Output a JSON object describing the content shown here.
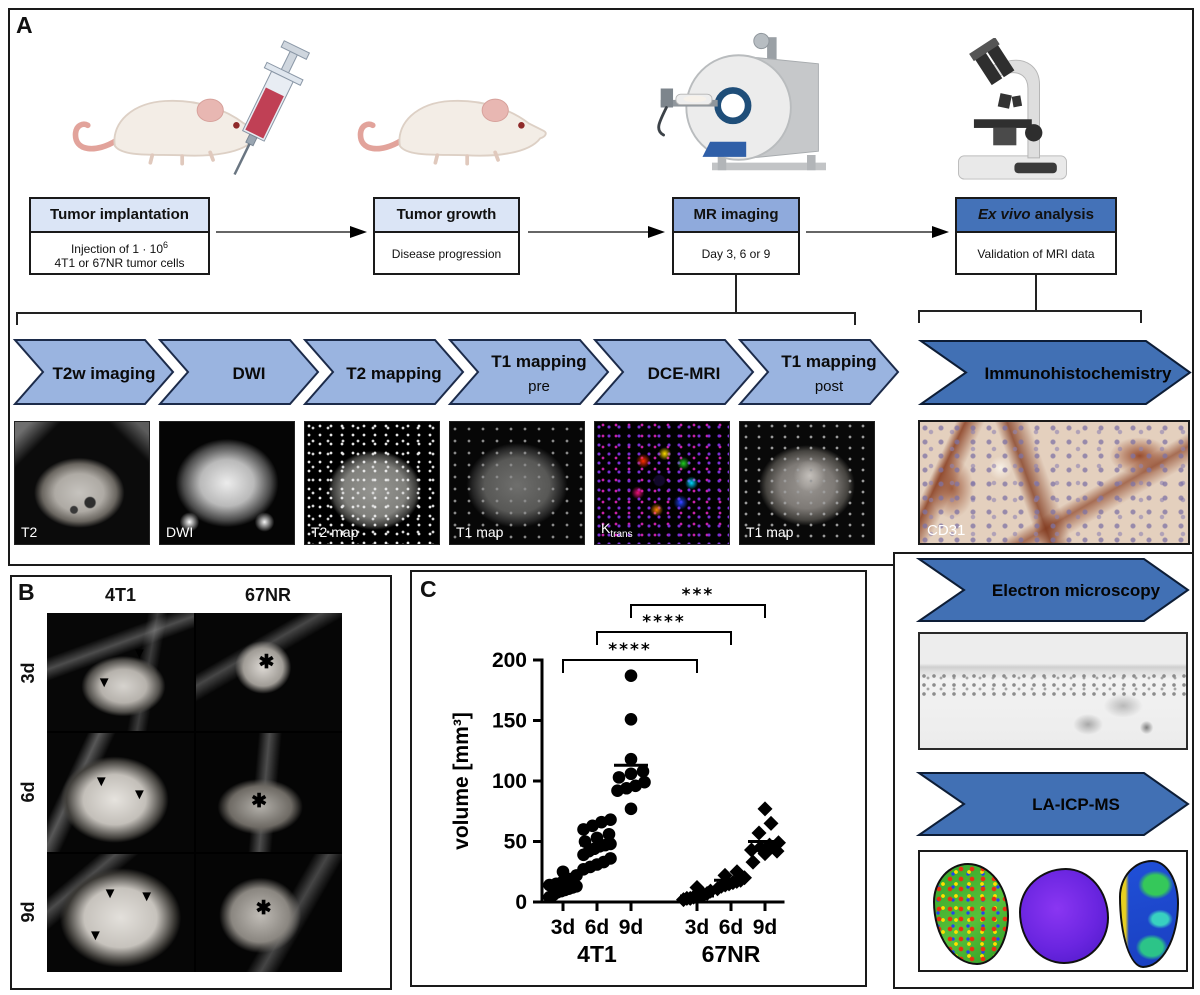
{
  "colors": {
    "chevron_light": "#9ab4e0",
    "chevron_dark": "#4170b4",
    "box_header_light": "#dbe5f6",
    "box_header_medium": "#8faadc",
    "box_header_dark": "#4472b8",
    "border": "#1a1a1a"
  },
  "figure": {
    "panel_a_label": "A",
    "panel_b_label": "B",
    "panel_c_label": "C"
  },
  "panel_a": {
    "flow": {
      "boxes": [
        {
          "title": "Tumor implantation",
          "body1": "Injection of 1 · 10",
          "body1_sup": "6",
          "body2": "4T1 or 67NR tumor cells"
        },
        {
          "title": "Tumor growth",
          "body1": "Disease progression"
        },
        {
          "title": "MR imaging",
          "body1": "Day 3, 6 or 9"
        },
        {
          "title_italic": "Ex vivo",
          "title_rest": " analysis",
          "body1": "Validation of MRI data"
        }
      ]
    },
    "chevrons": [
      {
        "line1": "T2w imaging",
        "line2": ""
      },
      {
        "line1": "DWI",
        "line2": ""
      },
      {
        "line1": "T2 mapping",
        "line2": ""
      },
      {
        "line1": "T1 mapping",
        "line2": "pre"
      },
      {
        "line1": "DCE-MRI",
        "line2": ""
      },
      {
        "line1": "T1 mapping",
        "line2": "post"
      }
    ],
    "scan_labels": [
      {
        "text": "T2",
        "sub": ""
      },
      {
        "text": "DWI",
        "sub": ""
      },
      {
        "text": "T2 map",
        "sub": ""
      },
      {
        "text": "T1 map",
        "sub": ""
      },
      {
        "text": "K",
        "sub": "trans"
      },
      {
        "text": "T1 map",
        "sub": ""
      }
    ]
  },
  "right_column": {
    "chevron_ihc": "Immunohistochemistry",
    "cd31_label": "CD31",
    "chevron_em": "Electron microscopy",
    "chevron_la": "LA-ICP-MS"
  },
  "panel_b": {
    "columns": [
      "4T1",
      "67NR"
    ],
    "rows": [
      "3d",
      "6d",
      "9d"
    ],
    "arrowhead_marker": "▼",
    "asterisk_marker": "✱"
  },
  "chart_data": {
    "type": "scatter",
    "title": "",
    "xlabel": "",
    "ylabel": "volume [mm³]",
    "ylim": [
      0,
      200
    ],
    "yticks": [
      0,
      50,
      100,
      150,
      200
    ],
    "grid": false,
    "series_labels": [
      "4T1",
      "67NR"
    ],
    "groups": [
      {
        "label": "3d",
        "series": "4T1",
        "marker": "circle",
        "values": [
          4,
          6,
          8,
          9,
          10,
          11,
          12,
          13,
          14,
          15,
          17,
          19,
          22,
          25
        ],
        "mean": 13
      },
      {
        "label": "6d",
        "series": "4T1",
        "marker": "circle",
        "values": [
          27,
          29,
          31,
          33,
          36,
          39,
          42,
          44,
          46,
          47,
          48,
          50,
          53,
          56,
          60,
          63,
          66,
          68
        ],
        "mean": 47
      },
      {
        "label": "9d",
        "series": "4T1",
        "marker": "circle",
        "values": [
          77,
          92,
          94,
          96,
          99,
          103,
          106,
          108,
          118,
          151,
          187
        ],
        "mean": 113
      },
      {
        "label": "3d",
        "series": "67NR",
        "marker": "diamond",
        "values": [
          2,
          3,
          3,
          4,
          5,
          5,
          6,
          7,
          9,
          12
        ],
        "mean": 5
      },
      {
        "label": "6d",
        "series": "67NR",
        "marker": "diamond",
        "values": [
          11,
          13,
          14,
          15,
          16,
          17,
          18,
          20,
          22,
          25
        ],
        "mean": 18
      },
      {
        "label": "9d",
        "series": "67NR",
        "marker": "diamond",
        "values": [
          33,
          40,
          42,
          43,
          45,
          47,
          49,
          57,
          65,
          77
        ],
        "mean": 50
      }
    ],
    "significance": [
      {
        "groups": [
          0,
          3
        ],
        "stars": "****"
      },
      {
        "groups": [
          1,
          4
        ],
        "stars": "****"
      },
      {
        "groups": [
          2,
          5
        ],
        "stars": "***"
      }
    ]
  }
}
